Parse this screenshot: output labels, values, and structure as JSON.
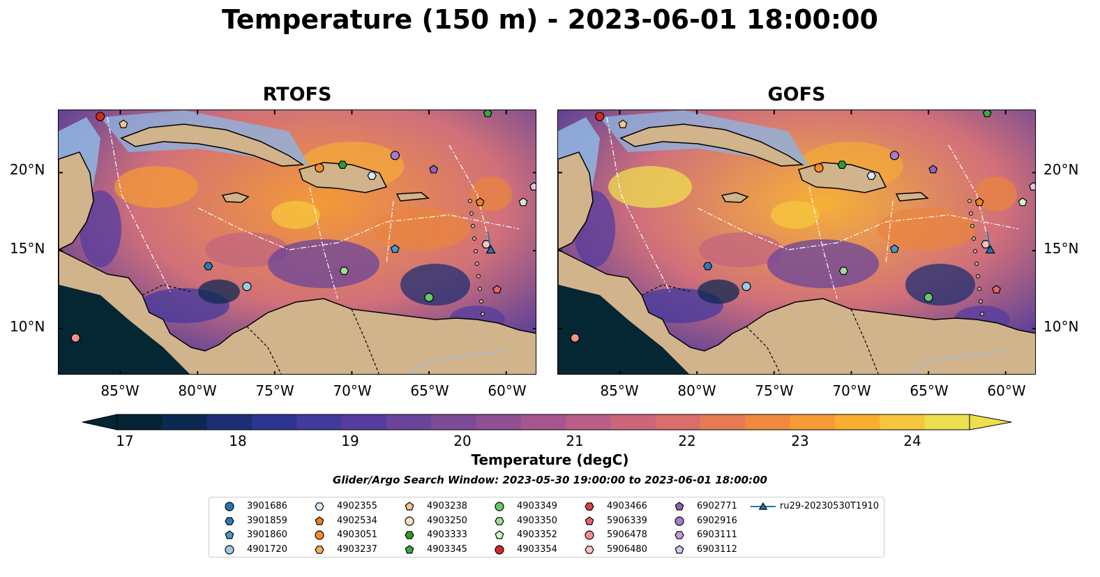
{
  "title": "Temperature (150 m) - 2023-06-01 18:00:00",
  "panels": [
    {
      "title": "RTOFS"
    },
    {
      "title": "GOFS"
    }
  ],
  "axes": {
    "lat_ticks": [
      "10°N",
      "15°N",
      "20°N"
    ],
    "lon_ticks": [
      "85°W",
      "80°W",
      "75°W",
      "70°W",
      "65°W",
      "60°W"
    ],
    "extent": {
      "lon": [
        -89,
        -58
      ],
      "lat": [
        7,
        24
      ]
    }
  },
  "colorbar": {
    "title": "Temperature (degC)",
    "ticks": [
      "17",
      "18",
      "19",
      "20",
      "21",
      "22",
      "23",
      "24"
    ],
    "range": [
      16.75,
      24.5
    ],
    "colors": [
      "#042333",
      "#0c2a50",
      "#1d2f72",
      "#2d3590",
      "#433a9e",
      "#563c9e",
      "#6a449b",
      "#7e4a96",
      "#914f93",
      "#a5568f",
      "#b95e86",
      "#cb6679",
      "#da6e6a",
      "#e77a55",
      "#f0883f",
      "#f69a35",
      "#f9ae31",
      "#f6c73d",
      "#eddf4f"
    ],
    "extend": "both"
  },
  "search_window": "Glider/Argo Search Window: 2023-05-30 19:00:00 to 2023-06-01 18:00:00",
  "legend": [
    {
      "label": "3901686",
      "marker": "circle",
      "color": "#1f77b4"
    },
    {
      "label": "3901859",
      "marker": "hexagon",
      "color": "#2b7bb9"
    },
    {
      "label": "3901860",
      "marker": "pentagon",
      "color": "#4d95c8"
    },
    {
      "label": "4901720",
      "marker": "circle",
      "color": "#9cc9e8"
    },
    {
      "label": "4902355",
      "marker": "hexagon",
      "color": "#d6eaf7"
    },
    {
      "label": "4902534",
      "marker": "pentagon",
      "color": "#f07f1e"
    },
    {
      "label": "4903051",
      "marker": "circle",
      "color": "#f78c2b"
    },
    {
      "label": "4903237",
      "marker": "hexagon",
      "color": "#fbab5c"
    },
    {
      "label": "4903238",
      "marker": "pentagon",
      "color": "#fdc48d"
    },
    {
      "label": "4903250",
      "marker": "circle",
      "color": "#fde0c0"
    },
    {
      "label": "4903333",
      "marker": "hexagon",
      "color": "#2a9c2e"
    },
    {
      "label": "4903345",
      "marker": "pentagon",
      "color": "#3aa843"
    },
    {
      "label": "4903349",
      "marker": "circle",
      "color": "#66c766"
    },
    {
      "label": "4903350",
      "marker": "hexagon",
      "color": "#a0dd96"
    },
    {
      "label": "4903352",
      "marker": "pentagon",
      "color": "#d3f2c9"
    },
    {
      "label": "4903354",
      "marker": "circle",
      "color": "#d62728"
    },
    {
      "label": "4903466",
      "marker": "hexagon",
      "color": "#dc3f48"
    },
    {
      "label": "5906339",
      "marker": "pentagon",
      "color": "#e4646b"
    },
    {
      "label": "5906478",
      "marker": "circle",
      "color": "#f0908f"
    },
    {
      "label": "5906480",
      "marker": "hexagon",
      "color": "#f8c2c1"
    },
    {
      "label": "6902771",
      "marker": "pentagon",
      "color": "#8e63c0"
    },
    {
      "label": "6902916",
      "marker": "circle",
      "color": "#a47cd0"
    },
    {
      "label": "6903111",
      "marker": "hexagon",
      "color": "#bfa0de"
    },
    {
      "label": "6903112",
      "marker": "pentagon",
      "color": "#dcc6ee"
    },
    {
      "label": "ru29-20230530T1910",
      "marker": "triangle",
      "color": "#1f77b4"
    }
  ],
  "floats": [
    {
      "id": "4903354",
      "lon": -86.3,
      "lat": 23.6
    },
    {
      "id": "4903238",
      "lon": -84.8,
      "lat": 23.1
    },
    {
      "id": "5906478",
      "lon": -87.9,
      "lat": 9.4
    },
    {
      "id": "3901859",
      "lon": -79.3,
      "lat": 14.0
    },
    {
      "id": "4901720",
      "lon": -76.8,
      "lat": 12.7
    },
    {
      "id": "4903051",
      "lon": -72.1,
      "lat": 20.3
    },
    {
      "id": "4903333",
      "lon": -70.6,
      "lat": 20.5
    },
    {
      "id": "4902355",
      "lon": -68.7,
      "lat": 19.8
    },
    {
      "id": "6902916",
      "lon": -67.2,
      "lat": 21.1
    },
    {
      "id": "6902771",
      "lon": -64.7,
      "lat": 20.2
    },
    {
      "id": "6903112",
      "lon": -58.2,
      "lat": 19.1
    },
    {
      "id": "4903352",
      "lon": -58.9,
      "lat": 18.1
    },
    {
      "id": "4902534",
      "lon": -61.7,
      "lat": 18.1
    },
    {
      "id": "3901860",
      "lon": -67.2,
      "lat": 15.1
    },
    {
      "id": "4903350",
      "lon": -70.5,
      "lat": 13.7
    },
    {
      "id": "4903349",
      "lon": -65.0,
      "lat": 12.0
    },
    {
      "id": "5906480",
      "lon": -61.3,
      "lat": 15.4
    },
    {
      "id": "5906339",
      "lon": -60.6,
      "lat": 12.5
    },
    {
      "id": "4903345",
      "lon": -61.2,
      "lat": 23.8
    }
  ],
  "glider": {
    "id": "ru29-20230530T1910",
    "track": [
      [
        -61.2,
        16.2
      ],
      [
        -61.0,
        15.0
      ]
    ]
  }
}
